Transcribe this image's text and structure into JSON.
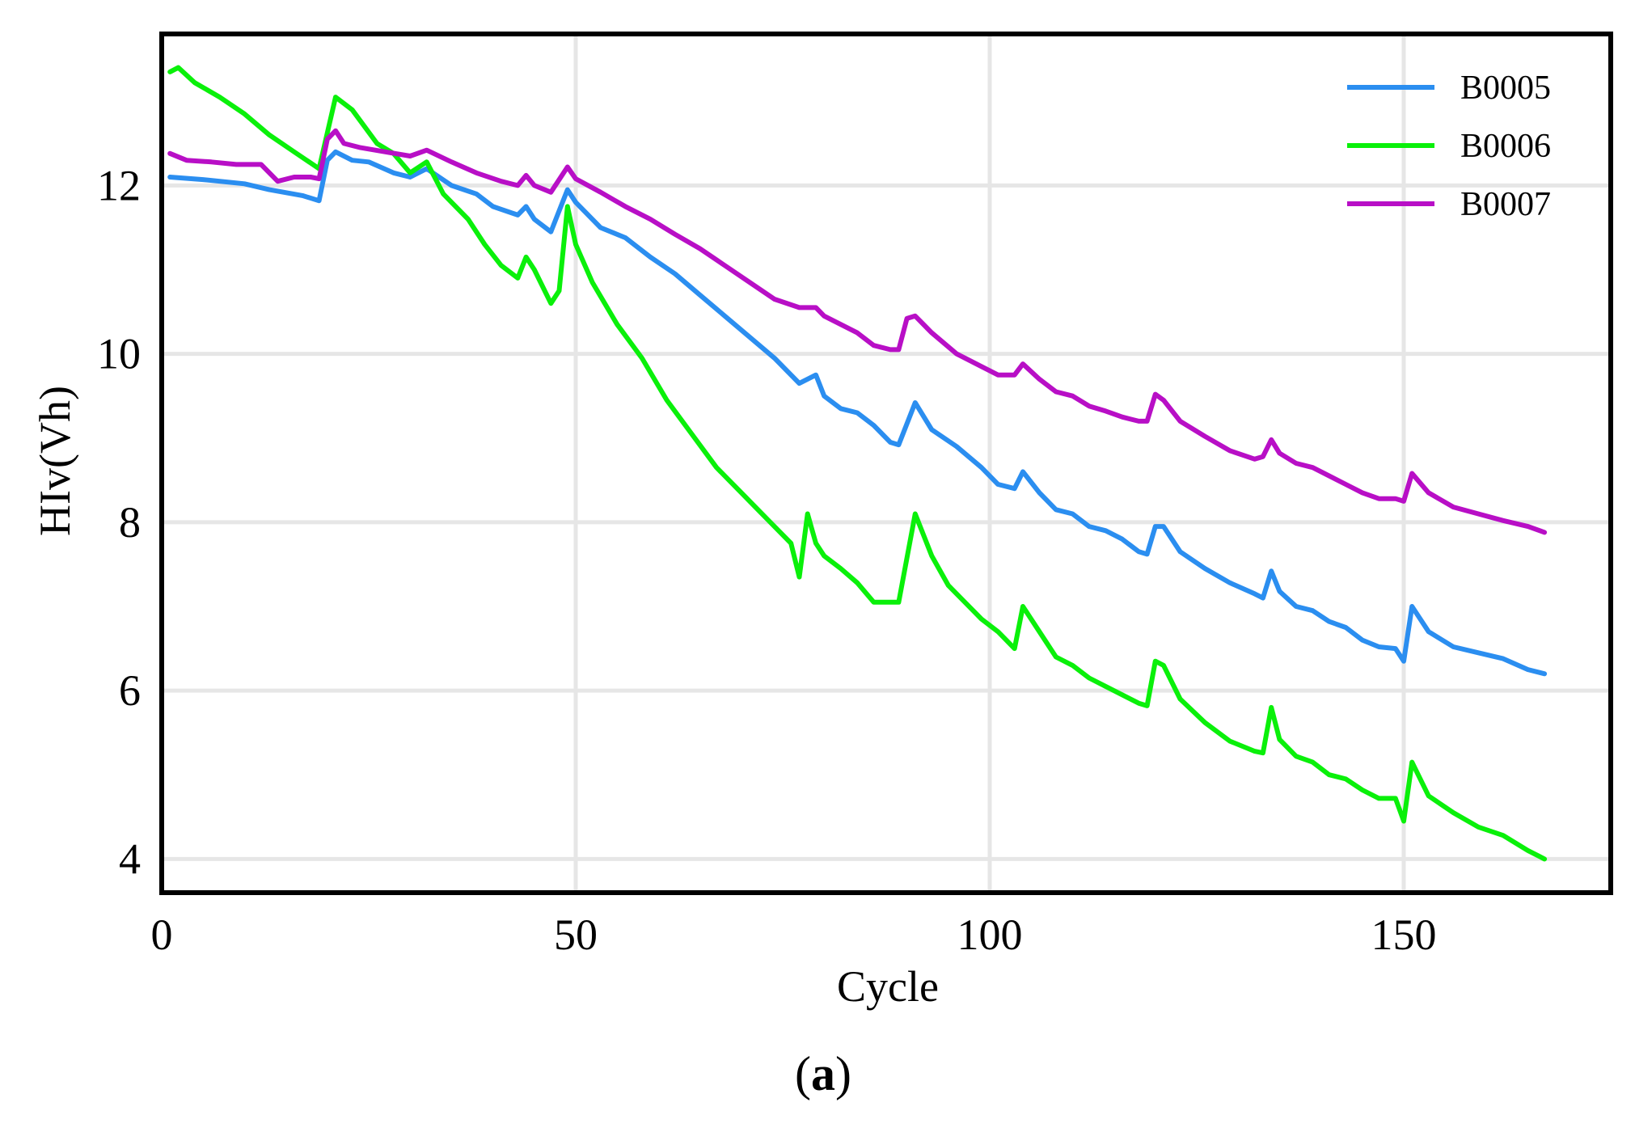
{
  "chart_data": {
    "type": "line",
    "title": "",
    "xlabel": "Cycle",
    "ylabel": "HIv(Vh)",
    "xlim": [
      0,
      175
    ],
    "ylim": [
      3.6,
      13.8
    ],
    "grid": true,
    "legend_position": "top-right",
    "xticks": [
      {
        "value": 0,
        "label": "0"
      },
      {
        "value": 50,
        "label": "50"
      },
      {
        "value": 100,
        "label": "100"
      },
      {
        "value": 150,
        "label": "150"
      }
    ],
    "yticks": [
      {
        "value": 4,
        "label": "4"
      },
      {
        "value": 6,
        "label": "6"
      },
      {
        "value": 8,
        "label": "8"
      },
      {
        "value": 10,
        "label": "10"
      },
      {
        "value": 12,
        "label": "12"
      }
    ],
    "series": [
      {
        "name": "B0005",
        "color": "#2b8ef0",
        "x": [
          1,
          5,
          10,
          13,
          17,
          19,
          20,
          21,
          23,
          25,
          28,
          30,
          32,
          35,
          38,
          40,
          43,
          44,
          45,
          47,
          49,
          50,
          53,
          56,
          59,
          62,
          65,
          68,
          71,
          74,
          77,
          79,
          80,
          82,
          84,
          86,
          88,
          89,
          91,
          93,
          96,
          99,
          101,
          103,
          104,
          106,
          108,
          110,
          112,
          114,
          116,
          118,
          119,
          120,
          121,
          123,
          126,
          129,
          132,
          133,
          134,
          135,
          137,
          139,
          141,
          143,
          145,
          147,
          149,
          150,
          151,
          153,
          156,
          159,
          162,
          165,
          167
        ],
        "y": [
          12.1,
          12.07,
          12.02,
          11.95,
          11.88,
          11.82,
          12.3,
          12.4,
          12.3,
          12.28,
          12.15,
          12.1,
          12.2,
          12.0,
          11.9,
          11.75,
          11.65,
          11.75,
          11.6,
          11.45,
          11.95,
          11.8,
          11.5,
          11.38,
          11.15,
          10.95,
          10.7,
          10.45,
          10.2,
          9.95,
          9.65,
          9.75,
          9.5,
          9.35,
          9.3,
          9.15,
          8.95,
          8.92,
          9.42,
          9.1,
          8.9,
          8.65,
          8.45,
          8.4,
          8.6,
          8.35,
          8.15,
          8.1,
          7.95,
          7.9,
          7.8,
          7.65,
          7.62,
          7.95,
          7.95,
          7.65,
          7.45,
          7.28,
          7.15,
          7.1,
          7.42,
          7.18,
          7.0,
          6.95,
          6.82,
          6.75,
          6.6,
          6.52,
          6.5,
          6.35,
          7.0,
          6.7,
          6.52,
          6.45,
          6.38,
          6.25,
          6.2
        ]
      },
      {
        "name": "B0006",
        "color": "#0af00a",
        "x": [
          1,
          2,
          4,
          7,
          10,
          13,
          16,
          19,
          21,
          23,
          26,
          28,
          30,
          32,
          34,
          37,
          39,
          41,
          43,
          44,
          45,
          47,
          48,
          49,
          50,
          52,
          55,
          58,
          61,
          64,
          67,
          70,
          73,
          76,
          77,
          78,
          79,
          80,
          82,
          84,
          86,
          88,
          89,
          91,
          93,
          95,
          97,
          99,
          101,
          103,
          104,
          106,
          108,
          110,
          112,
          114,
          116,
          118,
          119,
          120,
          121,
          123,
          126,
          129,
          132,
          133,
          134,
          135,
          137,
          139,
          141,
          143,
          145,
          147,
          149,
          150,
          151,
          153,
          156,
          159,
          162,
          165,
          167
        ],
        "y": [
          13.35,
          13.4,
          13.22,
          13.05,
          12.85,
          12.6,
          12.4,
          12.2,
          13.05,
          12.9,
          12.5,
          12.38,
          12.15,
          12.28,
          11.9,
          11.6,
          11.3,
          11.05,
          10.9,
          11.15,
          11.0,
          10.6,
          10.75,
          11.75,
          11.3,
          10.85,
          10.35,
          9.95,
          9.45,
          9.05,
          8.65,
          8.35,
          8.05,
          7.75,
          7.35,
          8.1,
          7.75,
          7.6,
          7.45,
          7.28,
          7.05,
          7.05,
          7.05,
          8.1,
          7.6,
          7.25,
          7.05,
          6.85,
          6.7,
          6.5,
          7.0,
          6.7,
          6.4,
          6.3,
          6.15,
          6.05,
          5.95,
          5.85,
          5.82,
          6.35,
          6.3,
          5.9,
          5.62,
          5.4,
          5.28,
          5.26,
          5.8,
          5.42,
          5.22,
          5.15,
          5.0,
          4.95,
          4.82,
          4.72,
          4.72,
          4.45,
          5.15,
          4.75,
          4.55,
          4.38,
          4.28,
          4.1,
          4.0
        ]
      },
      {
        "name": "B0007",
        "color": "#b80fc6",
        "x": [
          1,
          3,
          6,
          9,
          12,
          14,
          16,
          18,
          19,
          20,
          21,
          22,
          24,
          27,
          30,
          32,
          35,
          38,
          41,
          43,
          44,
          45,
          47,
          49,
          50,
          53,
          56,
          59,
          62,
          65,
          68,
          71,
          74,
          77,
          79,
          80,
          82,
          84,
          86,
          88,
          89,
          90,
          91,
          93,
          96,
          99,
          101,
          103,
          104,
          106,
          108,
          110,
          112,
          114,
          116,
          118,
          119,
          120,
          121,
          123,
          126,
          129,
          132,
          133,
          134,
          135,
          137,
          139,
          141,
          143,
          145,
          147,
          149,
          150,
          151,
          153,
          156,
          159,
          162,
          165,
          167
        ],
        "y": [
          12.38,
          12.3,
          12.28,
          12.25,
          12.25,
          12.05,
          12.1,
          12.1,
          12.08,
          12.55,
          12.65,
          12.5,
          12.45,
          12.4,
          12.35,
          12.42,
          12.28,
          12.15,
          12.05,
          12.0,
          12.12,
          12.0,
          11.92,
          12.22,
          12.08,
          11.92,
          11.75,
          11.6,
          11.42,
          11.25,
          11.05,
          10.85,
          10.65,
          10.55,
          10.55,
          10.45,
          10.35,
          10.25,
          10.1,
          10.05,
          10.05,
          10.42,
          10.45,
          10.25,
          10.0,
          9.85,
          9.75,
          9.75,
          9.88,
          9.7,
          9.55,
          9.5,
          9.38,
          9.32,
          9.25,
          9.2,
          9.2,
          9.52,
          9.45,
          9.2,
          9.02,
          8.85,
          8.75,
          8.78,
          8.98,
          8.82,
          8.7,
          8.65,
          8.55,
          8.45,
          8.35,
          8.28,
          8.28,
          8.25,
          8.58,
          8.35,
          8.18,
          8.1,
          8.02,
          7.95,
          7.88
        ]
      }
    ]
  },
  "caption": {
    "open": "(",
    "letter": "a",
    "close": ")"
  }
}
